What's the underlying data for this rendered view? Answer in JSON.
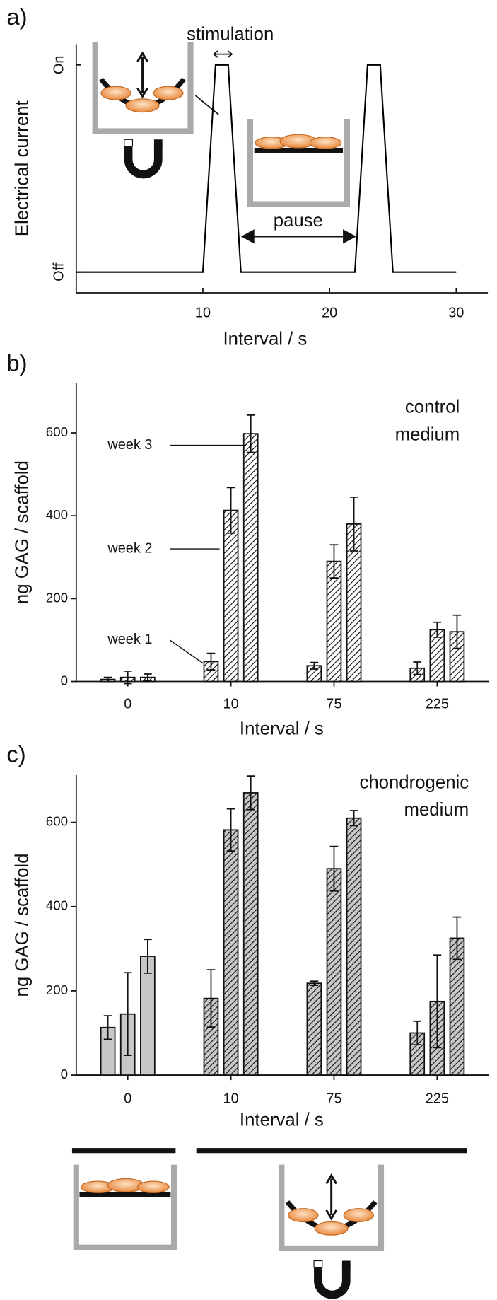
{
  "chart_data": [
    {
      "type": "line",
      "label": "a)",
      "annotations": [
        "stimulation",
        "pause"
      ],
      "ylabel": "Electrical current",
      "xlabel": "Interval / s",
      "x": [
        0,
        10,
        11,
        12,
        13,
        22,
        23,
        24,
        25,
        30
      ],
      "series": [
        {
          "color": "#000000",
          "values": [
            0,
            0,
            1,
            1,
            0,
            0,
            1,
            1,
            0,
            0
          ]
        }
      ],
      "xlim": [
        0,
        32.5
      ],
      "xticks": [
        10,
        20,
        30
      ],
      "ylim": [
        -0.1,
        1.1
      ],
      "yticks": [
        {
          "value": 0,
          "label": "Off"
        },
        {
          "value": 1,
          "label": "On"
        }
      ]
    },
    {
      "type": "bar",
      "label": "b)",
      "annotation": [
        "control",
        "medium"
      ],
      "ylabel": "ng GAG / scaffold",
      "xlabel": "Interval / s",
      "categories": [
        "0",
        "10",
        "75",
        "225"
      ],
      "series": [
        {
          "name": "week 1",
          "values": [
            5,
            48,
            38,
            32
          ],
          "errors": [
            5,
            20,
            8,
            15
          ]
        },
        {
          "name": "week 2",
          "values": [
            10,
            413,
            290,
            125
          ],
          "errors": [
            15,
            55,
            40,
            18
          ]
        },
        {
          "name": "week 3",
          "values": [
            10,
            598,
            380,
            120
          ],
          "errors": [
            8,
            45,
            65,
            40
          ]
        }
      ],
      "color": "#ffffff",
      "hatch": [
        true,
        true,
        true,
        true
      ],
      "ylim": [
        0,
        720
      ],
      "yticks": [
        0,
        200,
        400,
        600
      ]
    },
    {
      "type": "bar",
      "label": "c)",
      "annotation": [
        "chondrogenic",
        "medium"
      ],
      "ylabel": "ng GAG / scaffold",
      "xlabel": "Interval / s",
      "categories": [
        "0",
        "10",
        "75",
        "225"
      ],
      "series": [
        {
          "values": [
            113,
            182,
            218,
            100
          ],
          "errors": [
            28,
            68,
            5,
            28
          ]
        },
        {
          "values": [
            145,
            582,
            490,
            175
          ],
          "errors": [
            98,
            50,
            53,
            110
          ]
        },
        {
          "values": [
            282,
            670,
            610,
            325
          ],
          "errors": [
            40,
            40,
            18,
            50
          ]
        }
      ],
      "color": "#c8c8c8",
      "hatch": [
        false,
        true,
        true,
        true
      ],
      "ylim": [
        0,
        712
      ],
      "yticks": [
        0,
        200,
        400,
        600
      ]
    }
  ]
}
